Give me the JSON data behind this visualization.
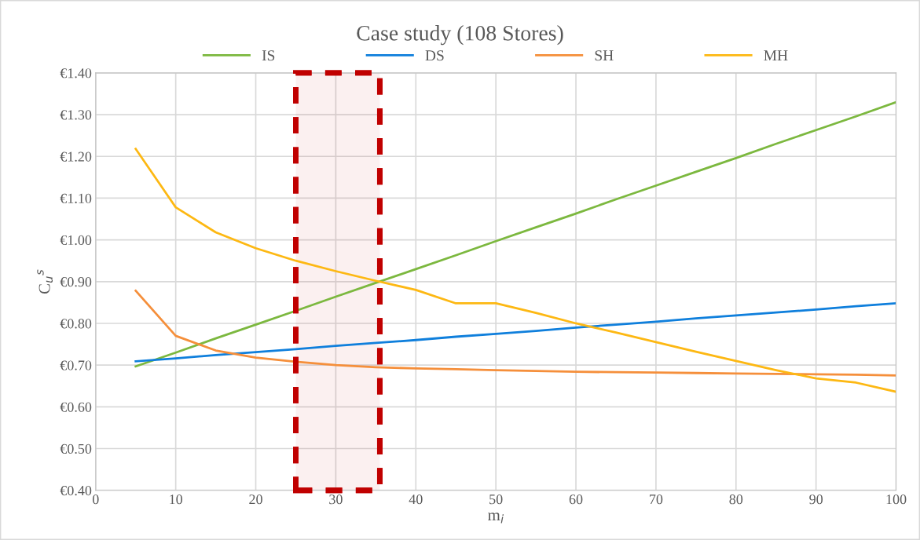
{
  "chart_data": {
    "type": "line",
    "title": "Case study (108 Stores)",
    "xlabel": "m$_{i}$",
    "ylabel": "C$_{u}$$^{s}$",
    "x": [
      5,
      10,
      15,
      20,
      25,
      30,
      35,
      40,
      45,
      50,
      55,
      60,
      65,
      70,
      75,
      80,
      85,
      90,
      95,
      100
    ],
    "series": [
      {
        "name": "IS",
        "color": "#7cb83f",
        "values": [
          0.697,
          0.73,
          0.764,
          0.797,
          0.83,
          0.864,
          0.897,
          0.93,
          0.963,
          0.997,
          1.03,
          1.063,
          1.097,
          1.13,
          1.163,
          1.196,
          1.23,
          1.263,
          1.296,
          1.33
        ]
      },
      {
        "name": "DS",
        "color": "#0f7fdc",
        "values": [
          0.709,
          0.716,
          0.724,
          0.731,
          0.738,
          0.746,
          0.753,
          0.76,
          0.768,
          0.775,
          0.782,
          0.79,
          0.797,
          0.804,
          0.812,
          0.819,
          0.826,
          0.833,
          0.841,
          0.848
        ]
      },
      {
        "name": "SH",
        "color": "#f58f3b",
        "values": [
          0.878,
          0.77,
          0.735,
          0.718,
          0.708,
          0.7,
          0.695,
          0.692,
          0.69,
          0.688,
          0.686,
          0.684,
          0.683,
          0.682,
          0.681,
          0.68,
          0.679,
          0.678,
          0.677,
          0.675
        ]
      },
      {
        "name": "MH",
        "color": "#fdb813",
        "values": [
          1.218,
          1.078,
          1.018,
          0.98,
          0.95,
          0.925,
          0.902,
          0.88,
          0.848,
          0.848,
          0.825,
          0.8,
          0.778,
          0.755,
          0.732,
          0.71,
          0.688,
          0.668,
          0.658,
          0.636
        ]
      }
    ],
    "xlim": [
      0,
      100
    ],
    "xticks": [
      0,
      10,
      20,
      30,
      40,
      50,
      60,
      70,
      80,
      90,
      100
    ],
    "ylim": [
      0.4,
      1.4
    ],
    "yticks": [
      {
        "value": 0.4,
        "label": "€0.40"
      },
      {
        "value": 0.5,
        "label": "€0.50"
      },
      {
        "value": 0.6,
        "label": "€0.60"
      },
      {
        "value": 0.7,
        "label": "€0.70"
      },
      {
        "value": 0.8,
        "label": "€0.80"
      },
      {
        "value": 0.9,
        "label": "€0.90"
      },
      {
        "value": 1.0,
        "label": "€1.00"
      },
      {
        "value": 1.1,
        "label": "€1.10"
      },
      {
        "value": 1.2,
        "label": "€1.20"
      },
      {
        "value": 1.3,
        "label": "€1.30"
      },
      {
        "value": 1.4,
        "label": "€1.40"
      }
    ],
    "bands": [
      {
        "axis": "x",
        "from": 25,
        "to": 35.5,
        "color": "#c00000"
      }
    ],
    "grid": true,
    "legend": "top",
    "marker": "none",
    "line_style": "solid"
  }
}
